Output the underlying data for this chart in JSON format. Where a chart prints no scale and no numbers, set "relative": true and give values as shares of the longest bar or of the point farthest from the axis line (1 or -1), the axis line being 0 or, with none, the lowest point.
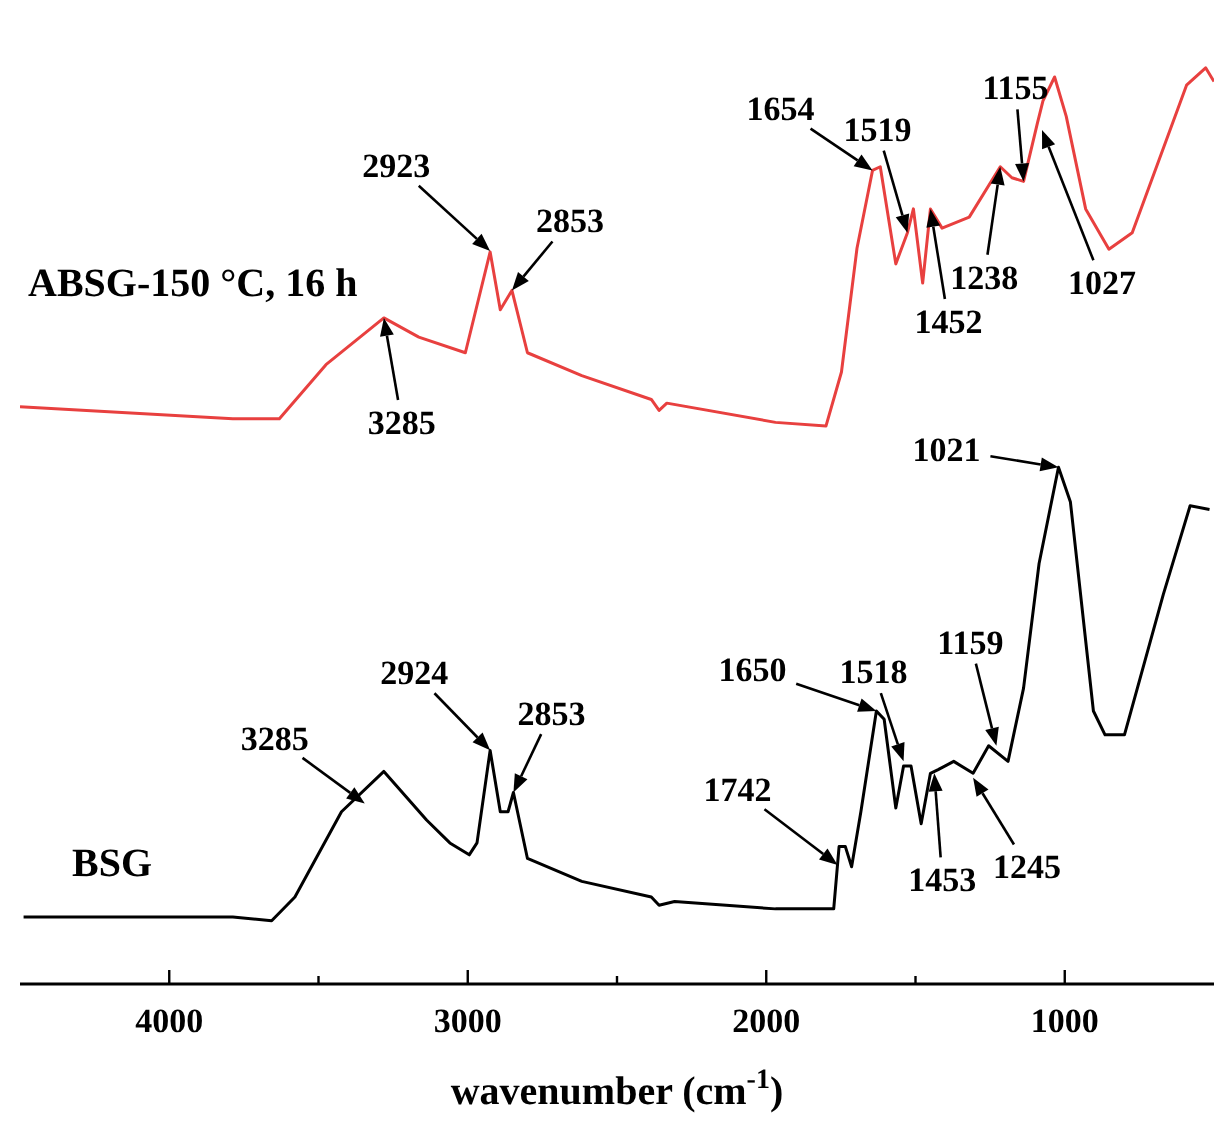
{
  "chart_data": {
    "type": "line",
    "relative": true,
    "xlabel": "wavenumber (cm$^{-1}$)",
    "xlim": [
      4500,
      500
    ],
    "xticks": [
      4000,
      {
        "value": 3500,
        "label": null
      },
      3000,
      {
        "value": 2500,
        "label": null
      },
      2000,
      {
        "value": 1500,
        "label": null
      },
      1000
    ],
    "legend": false,
    "grid": false,
    "marker": "none",
    "line_style": "solid",
    "series": [
      {
        "name": "ABSG-150 °C, 16 h",
        "color": "#e8403f",
        "x": [
          4500,
          3787,
          3631,
          3475,
          3281,
          3164,
          3008,
          2925,
          2891,
          2852,
          2800,
          2618,
          2385,
          2359,
          2333,
          1969,
          1800,
          1748,
          1696,
          1644,
          1618,
          1566,
          1527,
          1507,
          1476,
          1450,
          1411,
          1320,
          1216,
          1177,
          1138,
          1092,
          1073,
          1034,
          995,
          930,
          852,
          774,
          592,
          528,
          500
        ],
        "values": [
          0.63,
          0.617,
          0.617,
          0.676,
          0.727,
          0.706,
          0.689,
          0.799,
          0.736,
          0.757,
          0.689,
          0.664,
          0.638,
          0.626,
          0.634,
          0.613,
          0.609,
          0.668,
          0.803,
          0.888,
          0.892,
          0.786,
          0.82,
          0.846,
          0.765,
          0.846,
          0.825,
          0.837,
          0.892,
          0.88,
          0.876,
          0.939,
          0.964,
          0.99,
          0.947,
          0.846,
          0.802,
          0.82,
          0.981,
          1.0,
          0.985
        ]
      },
      {
        "name": "BSG",
        "color": "#000000",
        "x": [
          4488,
          3787,
          3657,
          3579,
          3423,
          3281,
          3138,
          3060,
          2995,
          2969,
          2925,
          2891,
          2865,
          2847,
          2800,
          2618,
          2385,
          2359,
          2307,
          1969,
          1774,
          1756,
          1735,
          1714,
          1683,
          1631,
          1605,
          1566,
          1540,
          1515,
          1481,
          1450,
          1424,
          1372,
          1307,
          1255,
          1190,
          1138,
          1086,
          1021,
          981,
          904,
          865,
          800,
          670,
          580,
          515
        ],
        "values": [
          0.073,
          0.073,
          0.069,
          0.095,
          0.188,
          0.232,
          0.179,
          0.154,
          0.141,
          0.154,
          0.255,
          0.188,
          0.188,
          0.209,
          0.137,
          0.112,
          0.095,
          0.086,
          0.09,
          0.082,
          0.082,
          0.15,
          0.15,
          0.128,
          0.188,
          0.298,
          0.289,
          0.192,
          0.238,
          0.238,
          0.175,
          0.23,
          0.234,
          0.243,
          0.23,
          0.26,
          0.243,
          0.323,
          0.459,
          0.564,
          0.526,
          0.298,
          0.272,
          0.272,
          0.425,
          0.522,
          0.518
        ]
      }
    ],
    "annotations": [
      {
        "text": "2923",
        "x": 2925,
        "y": 0.8
      },
      {
        "text": "2853",
        "x": 2852,
        "y": 0.757
      },
      {
        "text": "3285",
        "x": 3281,
        "y": 0.727
      },
      {
        "text": "1654",
        "x": 1644,
        "y": 0.888
      },
      {
        "text": "1519",
        "x": 1527,
        "y": 0.82
      },
      {
        "text": "1452",
        "x": 1450,
        "y": 0.846
      },
      {
        "text": "1238",
        "x": 1216,
        "y": 0.892
      },
      {
        "text": "1155",
        "x": 1138,
        "y": 0.876
      },
      "1027",
      {
        "text": "1021",
        "x": 1021,
        "y": 0.564
      },
      {
        "text": "3285",
        "x": 3345,
        "y": 0.197
      },
      {
        "text": "2924",
        "x": 2925,
        "y": 0.255
      },
      {
        "text": "2853",
        "x": 2847,
        "y": 0.209
      },
      {
        "text": "1650",
        "x": 1631,
        "y": 0.298
      },
      {
        "text": "1518",
        "x": 1540,
        "y": 0.243
      },
      {
        "text": "1159",
        "x": 1229,
        "y": 0.26
      },
      {
        "text": "1742",
        "x": 1761,
        "y": 0.13
      },
      {
        "text": "1453",
        "x": 1437,
        "y": 0.23
      },
      {
        "text": "1245",
        "x": 1307,
        "y": 0.225
      }
    ]
  }
}
